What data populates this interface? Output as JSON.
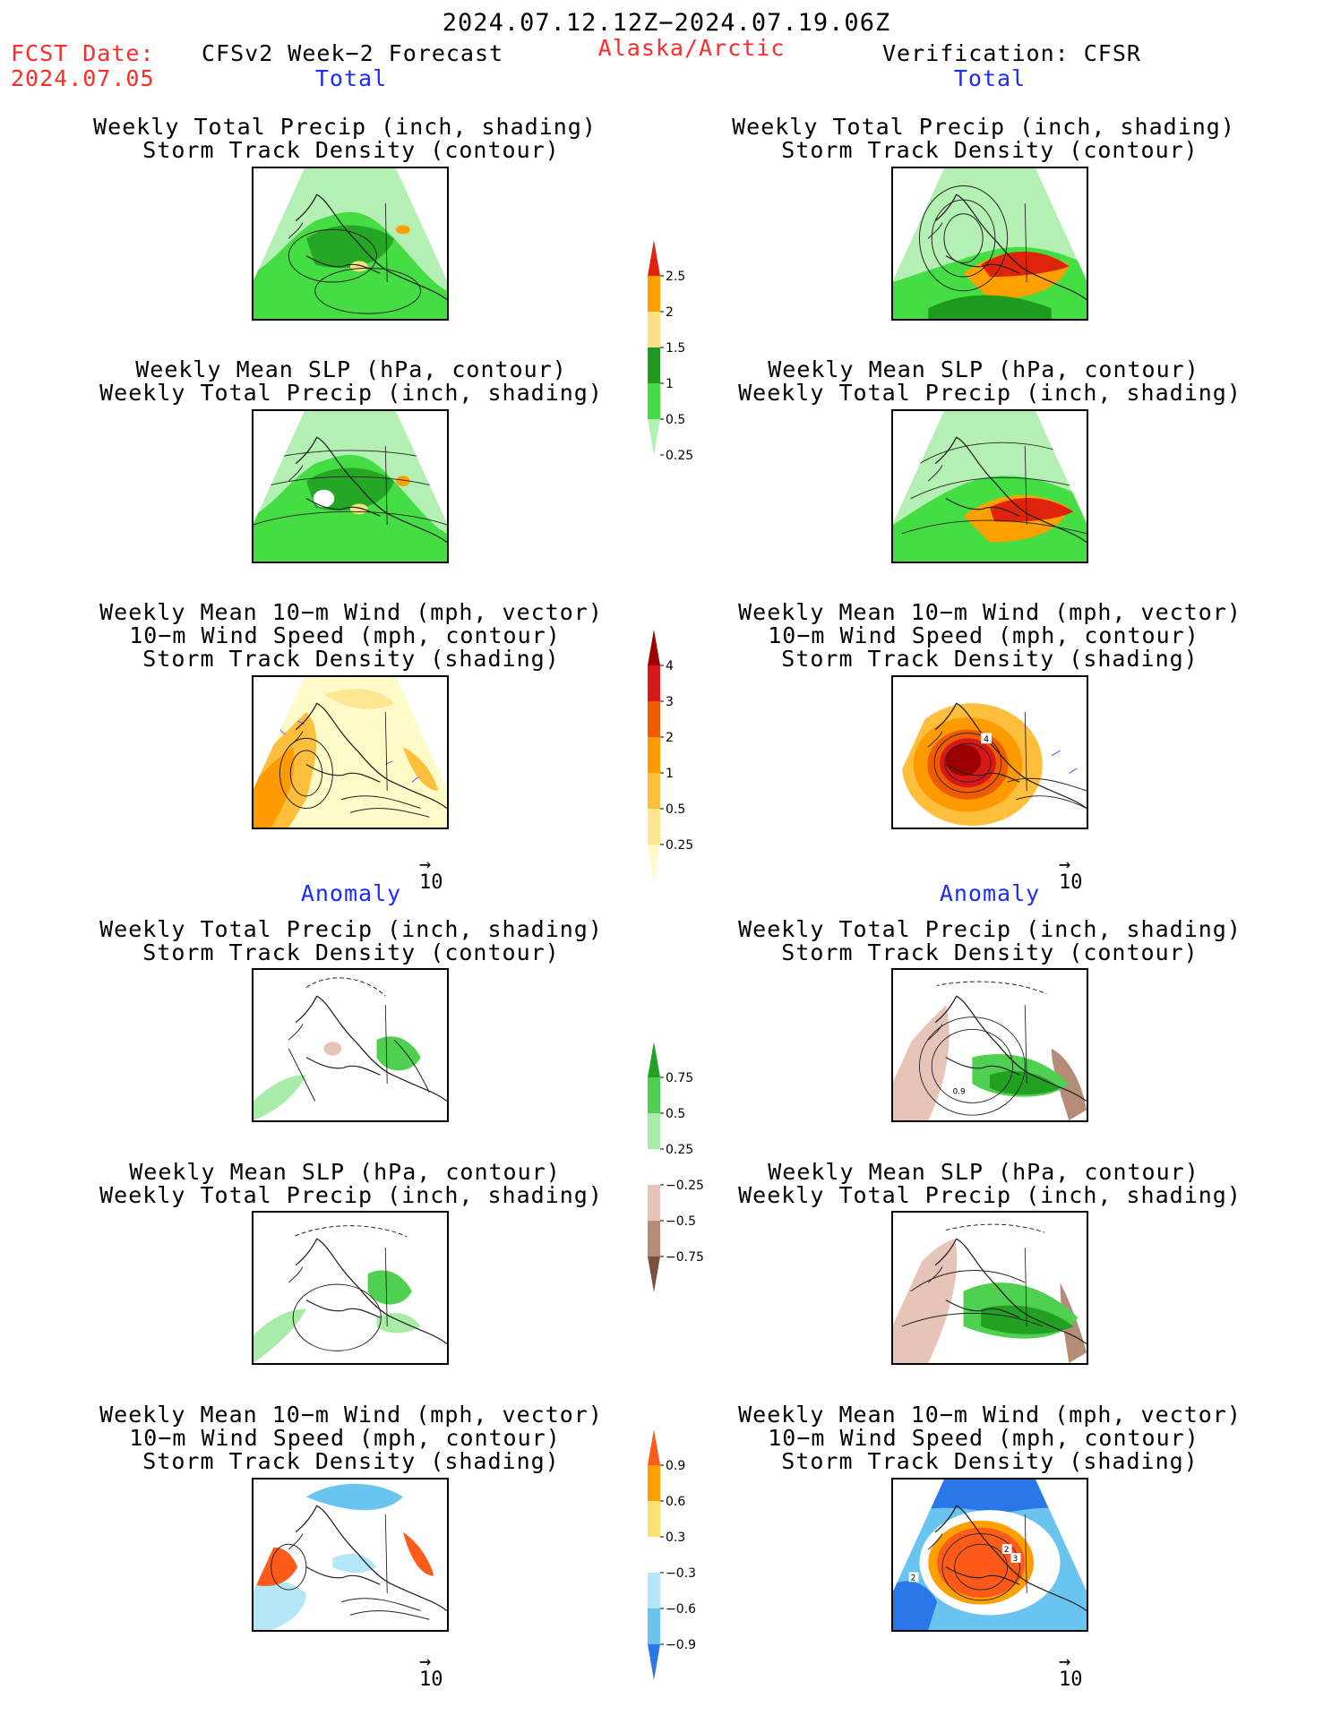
{
  "header": {
    "date_range": "2024.07.12.12Z−2024.07.19.06Z",
    "fcst_label": "FCST Date:",
    "fcst_date": "2024.07.05",
    "model": "CFSv2 Week−2 Forecast",
    "region": "Alaska/Arctic",
    "verification": "Verification: CFSR"
  },
  "sections": {
    "total": "Total",
    "anomaly": "Anomaly"
  },
  "titles": {
    "precip_storm": [
      "Weekly Total Precip (inch, shading)",
      "Storm Track Density (contour)"
    ],
    "slp_precip": [
      "Weekly Mean SLP (hPa, contour)",
      "Weekly Total Precip (inch, shading)"
    ],
    "wind_storm": [
      "Weekly Mean 10−m Wind (mph, vector)",
      "10−m Wind Speed (mph, contour)",
      "Storm Track Density (shading)"
    ]
  },
  "vector_ref": {
    "arrow": "→",
    "value": "10"
  },
  "colorbars": [
    {
      "name": "precip-total",
      "labels": [
        "2.5",
        "2",
        "1.5",
        "1",
        "0.5",
        "0.25"
      ],
      "colors": [
        "#e0240c",
        "#ffa000",
        "#ffe080",
        "#1e9a1e",
        "#44dd44",
        "#b4f0b4"
      ]
    },
    {
      "name": "storm-total",
      "labels": [
        "4",
        "3",
        "2",
        "1",
        "0.5",
        "0.25"
      ],
      "colors": [
        "#9c0000",
        "#d81818",
        "#f05a00",
        "#ff9a00",
        "#ffbf3c",
        "#ffe690",
        "#fffbc8"
      ]
    },
    {
      "name": "precip-anom",
      "labels": [
        "0.75",
        "0.5",
        "0.25",
        "−0.25",
        "−0.5",
        "−0.75"
      ],
      "colors": [
        "#22a022",
        "#50d050",
        "#a8eca8",
        "#ffffff",
        "#e6c4b8",
        "#b48c78",
        "#7a5040"
      ]
    },
    {
      "name": "storm-anom",
      "labels": [
        "0.9",
        "0.6",
        "0.3",
        "−0.3",
        "−0.6",
        "−0.9"
      ],
      "colors": [
        "#ff5a1a",
        "#ffa000",
        "#ffe070",
        "#ffffff",
        "#b4e8f8",
        "#6ac4f0",
        "#2a78e8"
      ]
    }
  ],
  "panel_marks": {
    "storm_total_verif": "4",
    "anom_precip_verif": "0.9",
    "anom_wind_verif_a": "2",
    "anom_wind_verif_b": "2",
    "anom_wind_verif_c": "3"
  }
}
